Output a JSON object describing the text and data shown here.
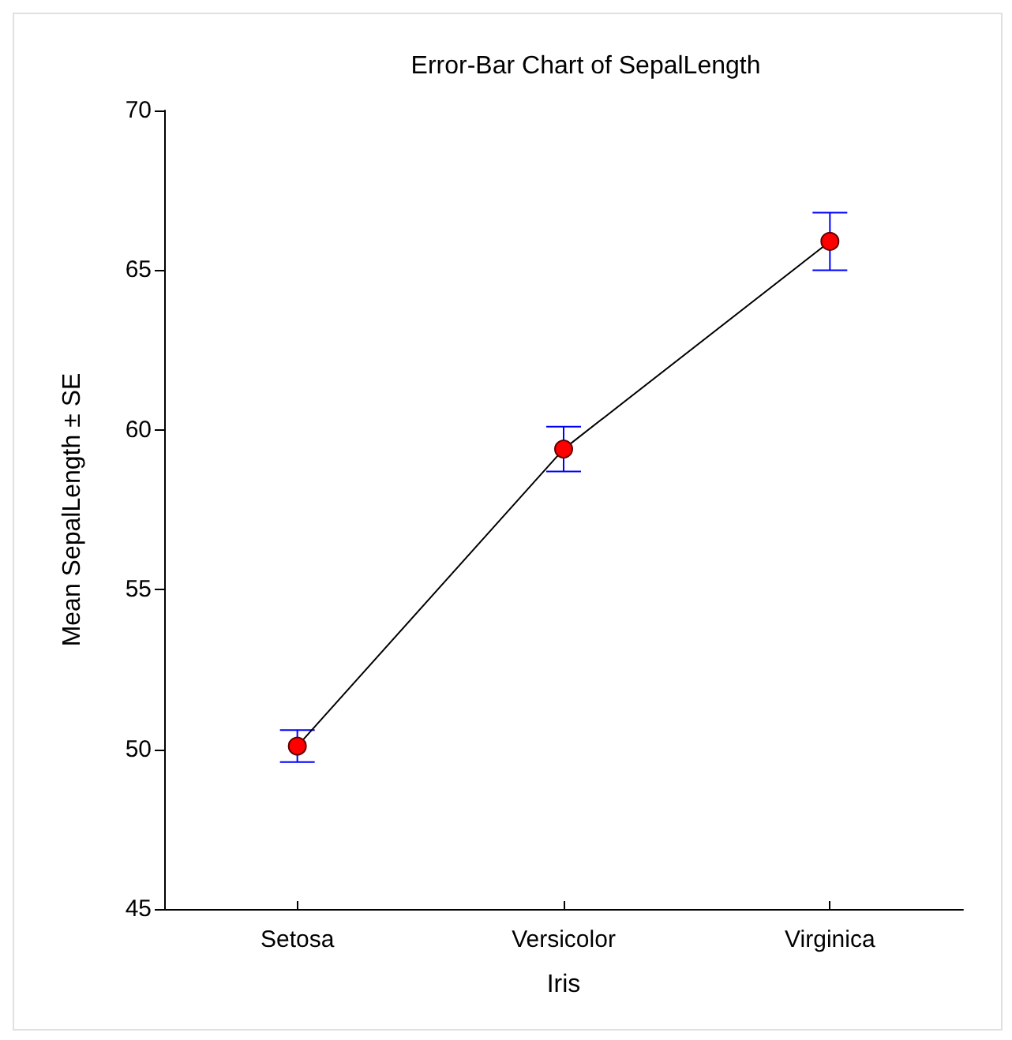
{
  "chart_data": {
    "type": "line",
    "title": "Error-Bar Chart of SepalLength",
    "xlabel": "Iris",
    "ylabel": "Mean SepalLength ± SE",
    "categories": [
      "Setosa",
      "Versicolor",
      "Virginica"
    ],
    "series": [
      {
        "color": "#ff0000",
        "values": [
          50.1,
          59.4,
          65.9
        ],
        "errors": [
          0.5,
          0.7,
          0.9
        ]
      }
    ],
    "ylim": [
      45,
      70
    ],
    "yticks": [
      45,
      50,
      55,
      60,
      65,
      70
    ],
    "marker": "circle",
    "line_style": "solid"
  }
}
